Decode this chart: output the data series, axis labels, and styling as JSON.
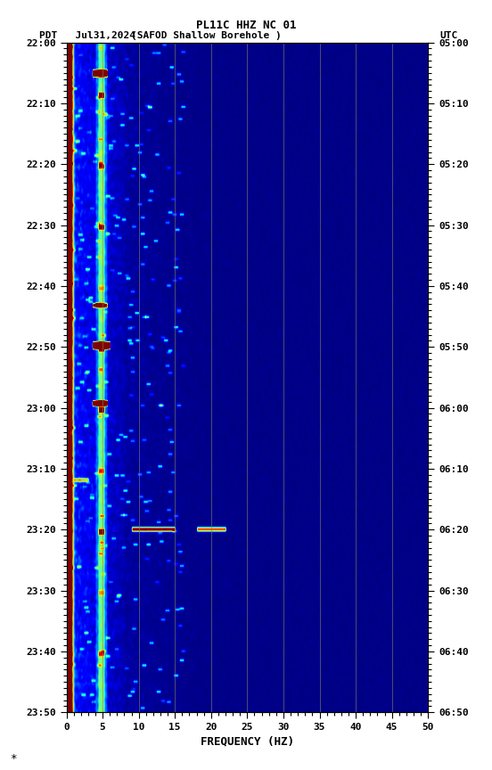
{
  "title_line1": "PL11C HHZ NC 01",
  "title_line2_left": "PDT   Jul31,2024",
  "title_line2_center": "(SAFOD Shallow Borehole )",
  "title_line2_right": "UTC",
  "xlabel": "FREQUENCY (HZ)",
  "freq_ticks": [
    0,
    5,
    10,
    15,
    20,
    25,
    30,
    35,
    40,
    45,
    50
  ],
  "time_ticks_pdt": [
    "22:00",
    "22:10",
    "22:20",
    "22:30",
    "22:40",
    "22:50",
    "23:00",
    "23:10",
    "23:20",
    "23:30",
    "23:40",
    "23:50"
  ],
  "time_ticks_utc": [
    "05:00",
    "05:10",
    "05:20",
    "05:30",
    "05:40",
    "05:50",
    "06:00",
    "06:10",
    "06:20",
    "06:30",
    "06:40",
    "06:50"
  ],
  "colormap": "jet",
  "fig_width": 5.52,
  "fig_height": 8.64,
  "vertical_lines_freq": [
    5,
    10,
    15,
    20,
    25,
    30,
    35,
    40,
    45
  ],
  "noise_seed": 42,
  "vline_color": "#808060",
  "footnote": "*"
}
